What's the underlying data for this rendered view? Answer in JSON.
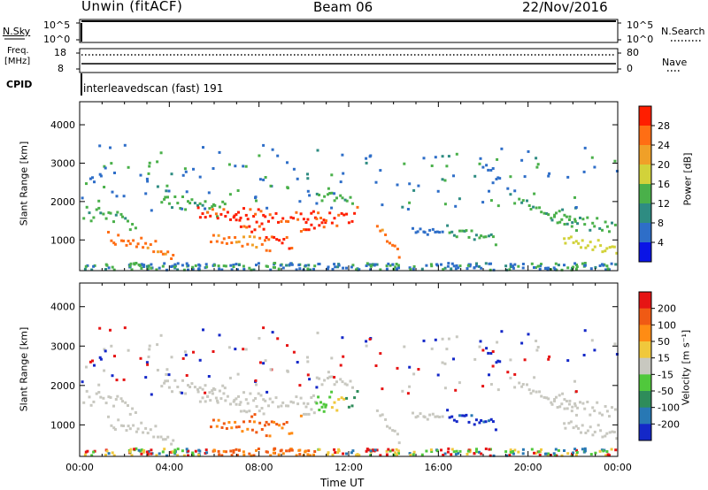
{
  "header": {
    "site": "Unwin (fitACF)",
    "beam": "Beam 06",
    "date": "22/Nov/2016"
  },
  "status_panels": {
    "nsky_label": "N.Sky",
    "nsky_ticks": [
      "10^5",
      "10^0"
    ],
    "nsearch_label": "N.Search",
    "nsearch_ticks": [
      "10^5",
      "10^0"
    ],
    "freq_label_line1": "Freq.",
    "freq_label_line2": "[MHz]",
    "freq_ticks": [
      "18",
      "8"
    ],
    "nave_label": "Nave",
    "nave_ticks": [
      "80",
      "0"
    ],
    "cpid_label": "CPID",
    "cpid_text": "interleavedscan (fast) 191"
  },
  "chart_data": [
    {
      "type": "heatmap",
      "name": "power-panel",
      "xlabel": "",
      "ylabel": "Slant Range [km]",
      "y_ticks": [
        "1000",
        "2000",
        "3000",
        "4000"
      ],
      "ylim": [
        200,
        4600
      ],
      "colorbar_label": "Power [dB]",
      "colorbar_ticks": [
        "28",
        "24",
        "20",
        "16",
        "12",
        "8",
        "4"
      ],
      "colors": [
        "#0a14e6",
        "#2e6ec8",
        "#2e8c82",
        "#4ab04a",
        "#d2d23a",
        "#f0a028",
        "#ff6e14",
        "#ff1e00"
      ]
    },
    {
      "type": "heatmap",
      "name": "velocity-panel",
      "xlabel": "Time UT",
      "ylabel": "Slant Range [km]",
      "y_ticks": [
        "1000",
        "2000",
        "3000",
        "4000"
      ],
      "ylim": [
        200,
        4600
      ],
      "x_ticks": [
        "00:00",
        "04:00",
        "08:00",
        "12:00",
        "16:00",
        "20:00",
        "00:00"
      ],
      "colorbar_label": "Velocity [m s⁻¹]",
      "colorbar_ticks": [
        "200",
        "100",
        "50",
        "15",
        "-15",
        "-50",
        "-100",
        "-200"
      ],
      "colors": [
        "#1428c8",
        "#2878b4",
        "#2e8c5a",
        "#50c83c",
        "#c8c8c0",
        "#f0c83c",
        "#ff8c14",
        "#f05a14",
        "#e61414"
      ]
    }
  ]
}
